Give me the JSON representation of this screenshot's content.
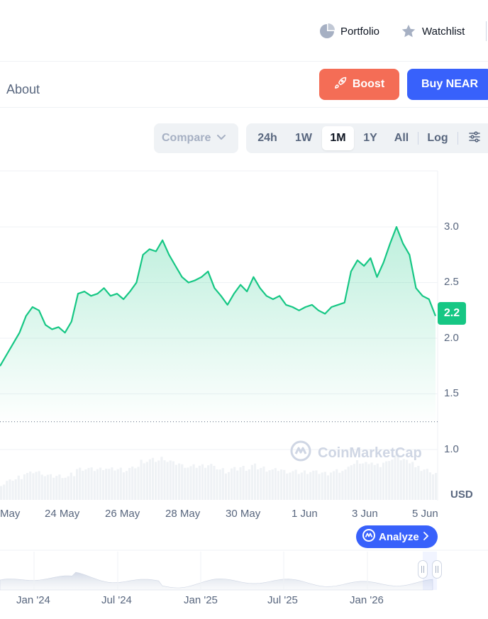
{
  "topnav": {
    "portfolio": "Portfolio",
    "watchlist": "Watchlist"
  },
  "subnav": {
    "about": "About",
    "boost": "Boost",
    "buy": "Buy NEAR"
  },
  "toolbar": {
    "compare": "Compare",
    "ranges": [
      "24h",
      "1W",
      "1M",
      "1Y",
      "All"
    ],
    "active_range": "1M",
    "log": "Log"
  },
  "chart_data": {
    "type": "area",
    "color": "#16c784",
    "current_price_label": "2.2",
    "y_ticks": [
      "3.0",
      "2.5",
      "2.0",
      "1.5",
      "1.0"
    ],
    "currency": "USD",
    "x_ticks": [
      "May",
      "24 May",
      "26 May",
      "28 May",
      "30 May",
      "1 Jun",
      "3 Jun",
      "5 Jun"
    ],
    "navigator_ticks": [
      "Jan '24",
      "Jul '24",
      "Jan '25",
      "Jul '25",
      "Jan '26"
    ],
    "ylim": [
      0.8,
      3.3
    ],
    "reference_line": 1.25,
    "series": [
      {
        "values": [
          1.75,
          1.85,
          1.95,
          2.05,
          2.2,
          2.28,
          2.25,
          2.12,
          2.08,
          2.1,
          2.05,
          2.15,
          2.4,
          2.42,
          2.38,
          2.4,
          2.45,
          2.38,
          2.4,
          2.35,
          2.42,
          2.5,
          2.75,
          2.8,
          2.78,
          2.88,
          2.75,
          2.65,
          2.55,
          2.5,
          2.52,
          2.55,
          2.6,
          2.45,
          2.38,
          2.3,
          2.4,
          2.48,
          2.42,
          2.55,
          2.45,
          2.38,
          2.35,
          2.38,
          2.3,
          2.28,
          2.25,
          2.28,
          2.3,
          2.25,
          2.22,
          2.28,
          2.3,
          2.32,
          2.6,
          2.7,
          2.65,
          2.72,
          2.55,
          2.68,
          2.85,
          3.0,
          2.85,
          2.75,
          2.45,
          2.38,
          2.35,
          2.2
        ]
      }
    ]
  },
  "analyze": "Analyze",
  "watermark": "CoinMarketCap"
}
